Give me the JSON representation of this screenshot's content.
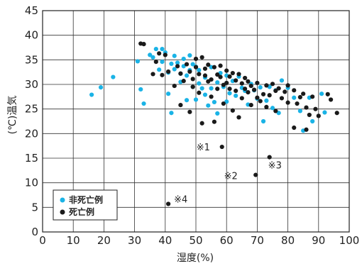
{
  "chart_data": {
    "type": "scatter",
    "title": "",
    "xlabel": "湿度(%)",
    "ylabel": "(℃)温気",
    "xlim": [
      0,
      100
    ],
    "ylim": [
      0,
      45
    ],
    "xticks": [
      0,
      10,
      20,
      30,
      40,
      50,
      60,
      70,
      80,
      90,
      100
    ],
    "yticks": [
      0,
      5,
      10,
      15,
      20,
      25,
      30,
      35,
      40,
      45
    ],
    "grid": true,
    "legend_position": "bottom-left",
    "colors": {
      "non_fatal": "#1ab3e6",
      "fatal": "#1a1a1a"
    },
    "annotations": [
      {
        "text": "※1",
        "x": 58.5,
        "y": 17.3
      },
      {
        "text": "※2",
        "x": 67.5,
        "y": 11.5
      },
      {
        "text": "※3",
        "x": 74.0,
        "y": 15.2
      },
      {
        "text": "※4",
        "x": 41.0,
        "y": 5.7
      }
    ],
    "series": [
      {
        "name": "非死亡例",
        "points": [
          [
            16,
            27.9
          ],
          [
            19,
            29.4
          ],
          [
            23,
            31.5
          ],
          [
            31,
            34.7
          ],
          [
            32,
            29
          ],
          [
            33,
            26.1
          ],
          [
            35,
            36
          ],
          [
            36,
            35.5
          ],
          [
            37,
            37.2
          ],
          [
            38,
            33
          ],
          [
            39,
            37.2
          ],
          [
            39,
            34.6
          ],
          [
            40,
            36.5
          ],
          [
            41,
            32.4
          ],
          [
            41,
            28.1
          ],
          [
            42,
            24.2
          ],
          [
            42,
            34.2
          ],
          [
            43,
            33.1
          ],
          [
            43,
            35.8
          ],
          [
            44,
            34.4
          ],
          [
            45,
            32.2
          ],
          [
            45,
            30.5
          ],
          [
            46,
            33.7
          ],
          [
            46,
            35.2
          ],
          [
            47,
            31.8
          ],
          [
            47,
            26.8
          ],
          [
            48,
            35.9
          ],
          [
            48,
            32.9
          ],
          [
            49,
            29.5
          ],
          [
            49,
            34.1
          ],
          [
            50,
            33.6
          ],
          [
            50,
            26.9
          ],
          [
            51,
            30.2
          ],
          [
            51,
            32.9
          ],
          [
            52,
            29.2
          ],
          [
            53,
            27.9
          ],
          [
            53,
            31.4
          ],
          [
            54,
            25.7
          ],
          [
            55,
            29.2
          ],
          [
            55,
            33.5
          ],
          [
            56,
            26.4
          ],
          [
            57,
            30.4
          ],
          [
            57,
            24.1
          ],
          [
            58,
            32.3
          ],
          [
            59,
            29.5
          ],
          [
            60,
            26.5
          ],
          [
            60,
            31.8
          ],
          [
            61,
            28.2
          ],
          [
            62,
            30.7
          ],
          [
            63,
            27.7
          ],
          [
            64,
            31.6
          ],
          [
            65,
            29.3
          ],
          [
            66,
            28.7
          ],
          [
            67,
            25.9
          ],
          [
            68,
            30.1
          ],
          [
            69,
            28.8
          ],
          [
            70,
            27.1
          ],
          [
            71,
            29.4
          ],
          [
            72,
            22.5
          ],
          [
            73,
            26.7
          ],
          [
            74,
            29.5
          ],
          [
            75,
            25.2
          ],
          [
            76,
            28.8
          ],
          [
            77,
            24.2
          ],
          [
            78,
            30.8
          ],
          [
            80,
            29.3
          ],
          [
            82,
            27.3
          ],
          [
            84,
            24.6
          ],
          [
            85,
            20.6
          ],
          [
            87,
            27.3
          ],
          [
            88,
            22.5
          ],
          [
            91,
            28.1
          ],
          [
            92,
            24.3
          ]
        ]
      },
      {
        "name": "死亡例",
        "points": [
          [
            32,
            38.3
          ],
          [
            33,
            38.2
          ],
          [
            36,
            32.1
          ],
          [
            37,
            34.6
          ],
          [
            38,
            36.3
          ],
          [
            39,
            31.9
          ],
          [
            40,
            36
          ],
          [
            41,
            32.6
          ],
          [
            43,
            29.7
          ],
          [
            44,
            33.7
          ],
          [
            45,
            32.2
          ],
          [
            45,
            25.8
          ],
          [
            46,
            30.7
          ],
          [
            47,
            34.1
          ],
          [
            48,
            32.6
          ],
          [
            48,
            24.4
          ],
          [
            49,
            31.1
          ],
          [
            49,
            29.5
          ],
          [
            50,
            35.2
          ],
          [
            50,
            33.5
          ],
          [
            51,
            32.1
          ],
          [
            51,
            28.3
          ],
          [
            52,
            35.5
          ],
          [
            52,
            22.1
          ],
          [
            53,
            31.8
          ],
          [
            53,
            33.2
          ],
          [
            54,
            30.6
          ],
          [
            54,
            34
          ],
          [
            55,
            31
          ],
          [
            55,
            27.5
          ],
          [
            56,
            33.5
          ],
          [
            56,
            22.4
          ],
          [
            57,
            32
          ],
          [
            57,
            29.1
          ],
          [
            58,
            31.5
          ],
          [
            58,
            33.8
          ],
          [
            59,
            29.9
          ],
          [
            59,
            26.1
          ],
          [
            60,
            32.8
          ],
          [
            60,
            30.3
          ],
          [
            61,
            29.1
          ],
          [
            61,
            31.6
          ],
          [
            62,
            32.3
          ],
          [
            62,
            24.7
          ],
          [
            63,
            30.8
          ],
          [
            63,
            28.7
          ],
          [
            64,
            32.1
          ],
          [
            64,
            23.3
          ],
          [
            65,
            30.2
          ],
          [
            65,
            27.2
          ],
          [
            66,
            31.3
          ],
          [
            66,
            29.1
          ],
          [
            67,
            28.4
          ],
          [
            67,
            30.6
          ],
          [
            68,
            29.7
          ],
          [
            68,
            25.8
          ],
          [
            69,
            28.9
          ],
          [
            70,
            27.3
          ],
          [
            70,
            30.3
          ],
          [
            71,
            26.6
          ],
          [
            72,
            28
          ],
          [
            73,
            29.8
          ],
          [
            73,
            25.4
          ],
          [
            74,
            27.8
          ],
          [
            75,
            30.1
          ],
          [
            76,
            28.7
          ],
          [
            76,
            24.6
          ],
          [
            77,
            29.2
          ],
          [
            78,
            27.2
          ],
          [
            79,
            28.5
          ],
          [
            80,
            26.3
          ],
          [
            80,
            29.8
          ],
          [
            82,
            28.8
          ],
          [
            82,
            21.2
          ],
          [
            83,
            26.1
          ],
          [
            84,
            27.4
          ],
          [
            85,
            28.1
          ],
          [
            86,
            25.3
          ],
          [
            86,
            20.8
          ],
          [
            87,
            23.8
          ],
          [
            88,
            27.5
          ],
          [
            89,
            25
          ],
          [
            90,
            23.6
          ],
          [
            93,
            28
          ],
          [
            94,
            26.9
          ],
          [
            96,
            24.2
          ],
          [
            58.5,
            17.3
          ],
          [
            69.5,
            11.6
          ],
          [
            74,
            15.2
          ],
          [
            41,
            5.7
          ]
        ]
      }
    ]
  }
}
